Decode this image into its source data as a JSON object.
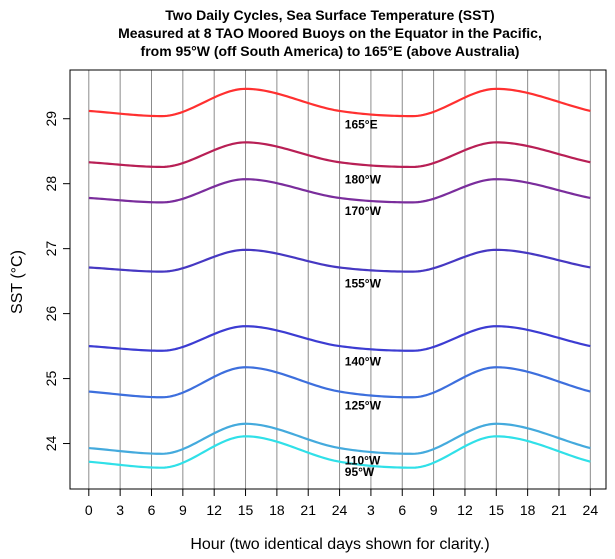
{
  "chart_data": {
    "type": "line",
    "title_lines": [
      "Two Daily Cycles, Sea Surface Temperature (SST)",
      "Measured at 8 TAO Moored Buoys on the Equator in the Pacific,",
      "from 95°W (off South America) to 165°E (above Australia)"
    ],
    "xlabel": "Hour (two identical days shown for clarity.)",
    "ylabel": "SST (°C)",
    "x_tick_labels": [
      "0",
      "3",
      "6",
      "9",
      "12",
      "15",
      "18",
      "21",
      "24",
      "3",
      "6",
      "9",
      "12",
      "15",
      "18",
      "21",
      "24"
    ],
    "y_ticks": [
      24,
      25,
      26,
      27,
      28,
      29
    ],
    "xlim": [
      -1.8,
      49.5
    ],
    "ylim": [
      23.3,
      29.75
    ],
    "x_grid": "vertical lines every 3 hours",
    "shape": {
      "x": [
        0,
        7,
        15,
        24,
        31,
        39,
        48
      ],
      "offsets": [
        0.0,
        -0.08,
        0.34,
        0.0,
        -0.08,
        0.34,
        0.0
      ]
    },
    "series": [
      {
        "name": "165°E",
        "base": 29.12,
        "amplitude_scale": 1.0,
        "color": "#ff3030",
        "label_x": 24.5,
        "label_y": 28.85
      },
      {
        "name": "180°W",
        "base": 28.33,
        "amplitude_scale": 0.9,
        "color": "#b81f55",
        "label_x": 24.5,
        "label_y": 28.0
      },
      {
        "name": "170°W",
        "base": 27.78,
        "amplitude_scale": 0.85,
        "color": "#7a2d9c",
        "label_x": 24.5,
        "label_y": 27.52
      },
      {
        "name": "155°W",
        "base": 26.71,
        "amplitude_scale": 0.8,
        "color": "#4638c2",
        "label_x": 24.5,
        "label_y": 26.4
      },
      {
        "name": "140°W",
        "base": 25.5,
        "amplitude_scale": 0.9,
        "color": "#3c3cd2",
        "label_x": 24.5,
        "label_y": 25.2
      },
      {
        "name": "125°W",
        "base": 24.8,
        "amplitude_scale": 1.1,
        "color": "#3d6fdd",
        "label_x": 24.5,
        "label_y": 24.52
      },
      {
        "name": "110°W",
        "base": 23.93,
        "amplitude_scale": 1.1,
        "color": "#44aadd",
        "label_x": 24.5,
        "label_y": 23.68
      },
      {
        "name": "95°W",
        "base": 23.72,
        "amplitude_scale": 1.15,
        "color": "#30e0e8",
        "label_x": 24.5,
        "label_y": 23.5
      }
    ]
  }
}
